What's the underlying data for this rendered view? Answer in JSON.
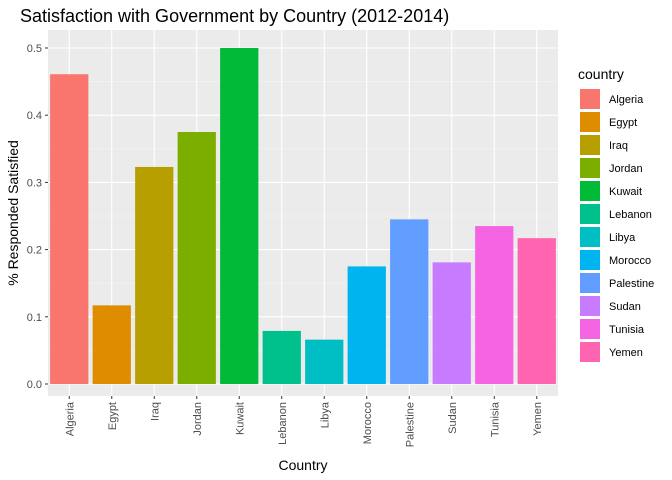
{
  "chart_data": {
    "type": "bar",
    "title": "Satisfaction with Government by Country (2012-2014)",
    "xlabel": "Country",
    "ylabel": "% Responded Satisfied",
    "ylim": [
      0,
      0.52
    ],
    "yticks": [
      "0.0",
      "0.1",
      "0.2",
      "0.3",
      "0.4",
      "0.5"
    ],
    "ytick_values": [
      0,
      0.1,
      0.2,
      0.3,
      0.4,
      0.5
    ],
    "grid": true,
    "legend_position": "right",
    "legend_title": "country",
    "categories": [
      "Algeria",
      "Egypt",
      "Iraq",
      "Jordan",
      "Kuwait",
      "Lebanon",
      "Libya",
      "Morocco",
      "Palestine",
      "Sudan",
      "Tunisia",
      "Yemen"
    ],
    "values": [
      0.461,
      0.117,
      0.323,
      0.375,
      0.5,
      0.079,
      0.066,
      0.175,
      0.245,
      0.181,
      0.235,
      0.217
    ],
    "colors": [
      "#F8766D",
      "#DE8C00",
      "#B79F00",
      "#7CAE00",
      "#00BA38",
      "#00C08B",
      "#00BFC4",
      "#00B4F0",
      "#619CFF",
      "#C77CFF",
      "#F564E3",
      "#FF64B0"
    ]
  }
}
